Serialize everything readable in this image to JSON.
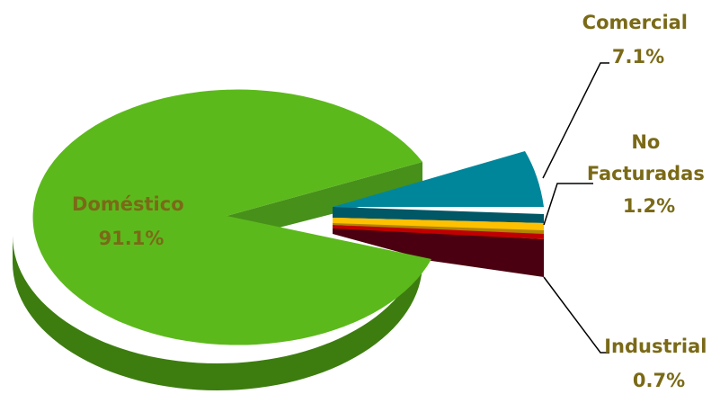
{
  "chart_data": {
    "type": "pie",
    "title": "",
    "slices": [
      {
        "label": "Doméstico",
        "value_label": "91.1%",
        "value": 91.1,
        "color": "#5cb91c",
        "side": "#3d7d10"
      },
      {
        "label": "Comercial",
        "value_label": "7.1%",
        "value": 7.1,
        "color": "#00869b",
        "side": "#005766"
      },
      {
        "label": "No Facturadas",
        "label_lines": [
          "No",
          "Facturadas"
        ],
        "value_label": "1.2%",
        "value": 1.2,
        "color": "#ffc000",
        "side": "#b08500"
      },
      {
        "label": "Industrial",
        "value_label": "0.7%",
        "value": 0.7,
        "color": "#c00000",
        "side": "#4a0010"
      }
    ],
    "label_color": "#7a6a17",
    "leader_line_color": "#000000"
  }
}
